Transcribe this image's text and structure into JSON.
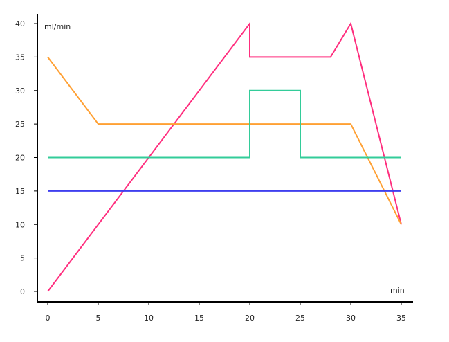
{
  "chart_data": {
    "type": "line",
    "xlabel": "min",
    "ylabel": "ml/min",
    "xlim": [
      0,
      35
    ],
    "ylim": [
      0,
      40
    ],
    "xticks": [
      0,
      5,
      10,
      15,
      20,
      25,
      30,
      35
    ],
    "yticks": [
      0,
      5,
      10,
      15,
      20,
      25,
      30,
      35,
      40
    ],
    "grid": false,
    "series": [
      {
        "color": "#ff2e7e",
        "x": [
          0,
          20,
          20,
          28,
          30,
          35
        ],
        "y": [
          0,
          40,
          35,
          35,
          40,
          10
        ]
      },
      {
        "color": "#ffa033",
        "x": [
          0,
          5,
          30,
          35
        ],
        "y": [
          35,
          25,
          25,
          10
        ]
      },
      {
        "color": "#33cc99",
        "x": [
          0,
          20,
          20,
          25,
          25,
          35
        ],
        "y": [
          20,
          20,
          30,
          30,
          20,
          20
        ]
      },
      {
        "color": "#3f3fef",
        "x": [
          0,
          35
        ],
        "y": [
          15,
          15
        ]
      }
    ]
  }
}
